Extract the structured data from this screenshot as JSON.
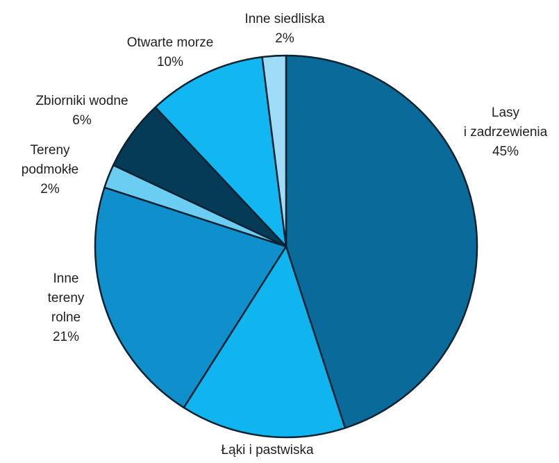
{
  "chart_data": {
    "type": "pie",
    "title": "",
    "slices": [
      {
        "name": "Lasy i zadrzewienia",
        "label_lines": [
          "Lasy",
          "i zadrzewienia"
        ],
        "value_label": "45%",
        "value": 45,
        "color": "#0a6a99"
      },
      {
        "name": "Łąki i pastwiska",
        "label_lines": [
          "Łąki i pastwiska"
        ],
        "value_label": "",
        "value": 14,
        "color": "#10b4ee"
      },
      {
        "name": "Inne tereny rolne",
        "label_lines": [
          "Inne",
          "tereny",
          "rolne"
        ],
        "value_label": "21%",
        "value": 21,
        "color": "#0f8fcc"
      },
      {
        "name": "Tereny podmokłe",
        "label_lines": [
          "Tereny",
          "podmokłe"
        ],
        "value_label": "2%",
        "value": 2,
        "color": "#6ccdf3"
      },
      {
        "name": "Zbiorniki wodne",
        "label_lines": [
          "Zbiorniki wodne"
        ],
        "value_label": "6%",
        "value": 6,
        "color": "#063b58"
      },
      {
        "name": "Otwarte morze",
        "label_lines": [
          "Otwarte morze"
        ],
        "value_label": "10%",
        "value": 10,
        "color": "#12b7f1"
      },
      {
        "name": "Inne siedliska",
        "label_lines": [
          "Inne siedliska"
        ],
        "value_label": "2%",
        "value": 2,
        "color": "#9edcf7"
      }
    ],
    "start": "12 o'clock",
    "direction": "clockwise",
    "legend": "none (labels placed around the pie)"
  }
}
